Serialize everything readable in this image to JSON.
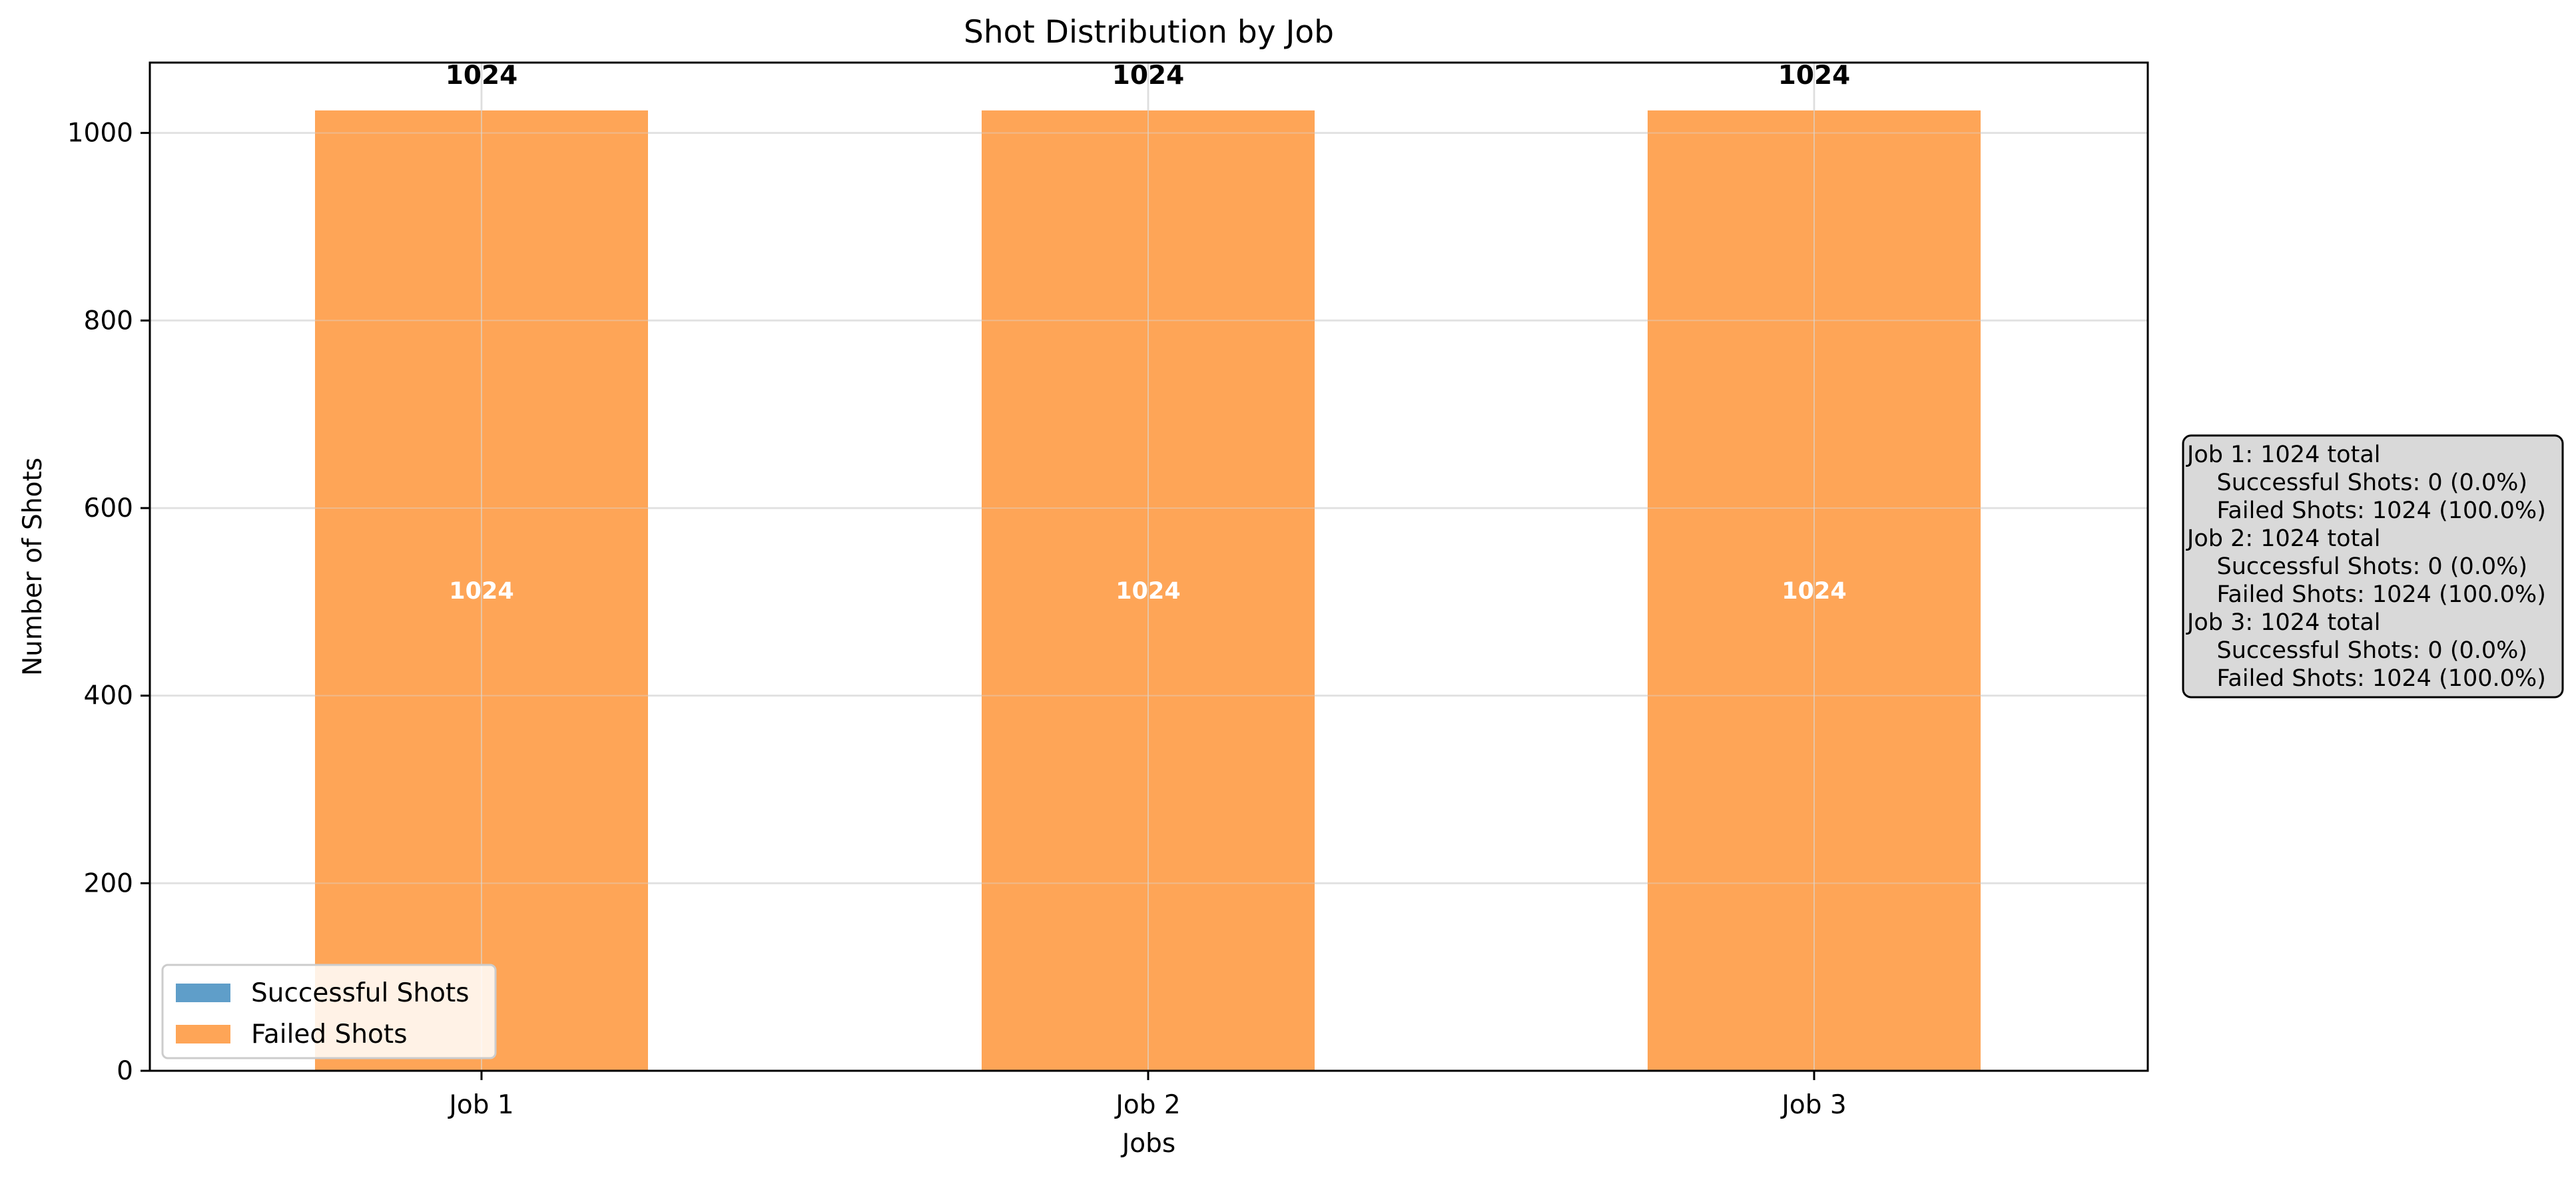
{
  "chart_data": {
    "type": "bar",
    "stacked": true,
    "title": "Shot Distribution by Job",
    "xlabel": "Jobs",
    "ylabel": "Number of Shots",
    "categories": [
      "Job 1",
      "Job 2",
      "Job 3"
    ],
    "series": [
      {
        "name": "Successful Shots",
        "values": [
          0,
          0,
          0
        ],
        "color": "#5f9ec9"
      },
      {
        "name": "Failed Shots",
        "values": [
          1024,
          1024,
          1024
        ],
        "color": "#fea557"
      }
    ],
    "totals": [
      1024,
      1024,
      1024
    ],
    "ylim": [
      0,
      1075
    ],
    "yticks": [
      0,
      200,
      400,
      600,
      800,
      1000
    ],
    "grid": true,
    "legend_position": "lower-left",
    "summary_box": {
      "lines": [
        "Job 1: 1024 total",
        "  Successful Shots: 0 (0.0%)",
        "  Failed Shots: 1024 (100.0%)",
        "Job 2: 1024 total",
        "  Successful Shots: 0 (0.0%)",
        "  Failed Shots: 1024 (100.0%)",
        "Job 3: 1024 total",
        "  Successful Shots: 0 (0.0%)",
        "  Failed Shots: 1024 (100.0%)"
      ]
    }
  }
}
